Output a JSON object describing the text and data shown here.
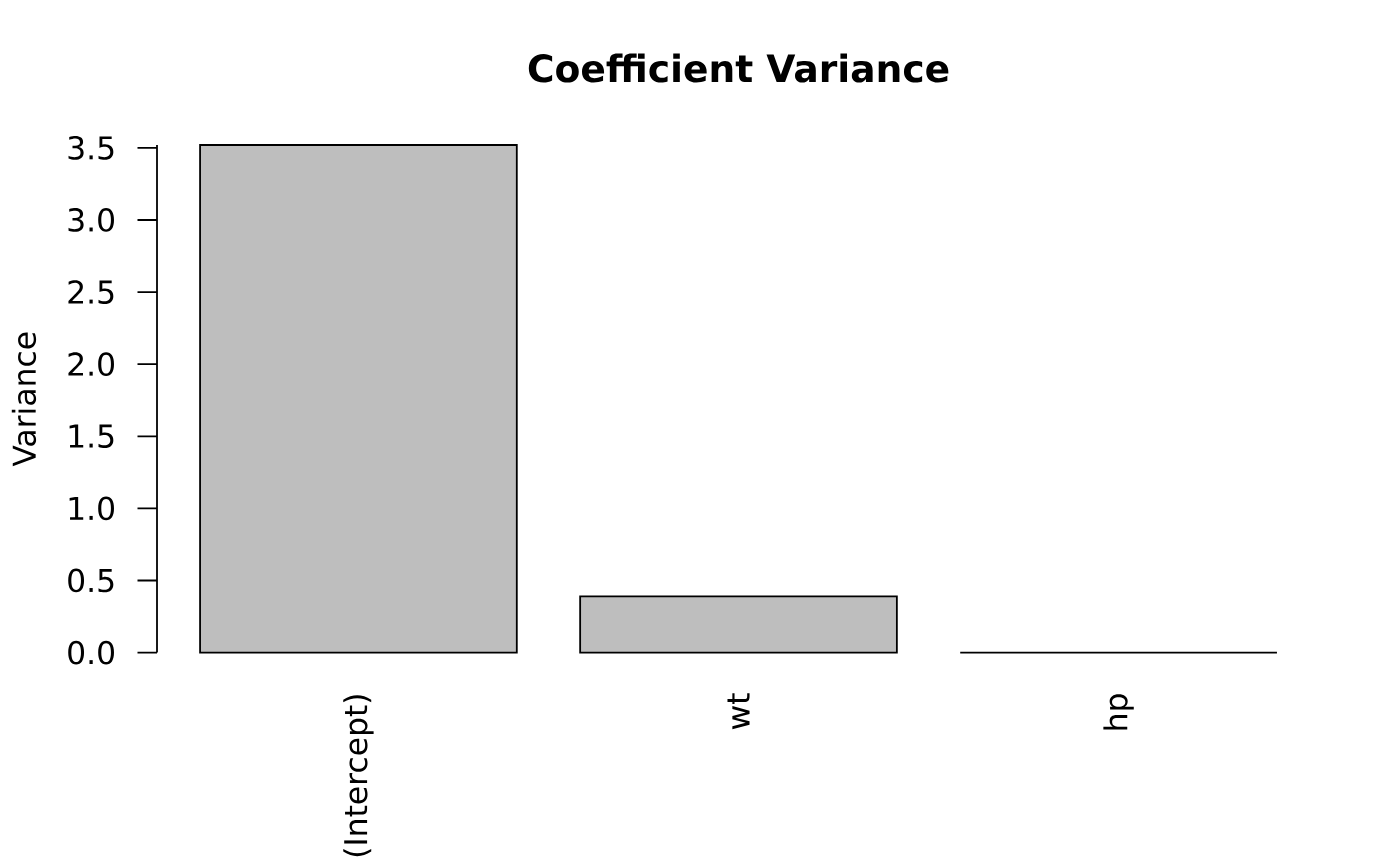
{
  "chart_data": {
    "type": "bar",
    "title": "Coefficient Variance",
    "ylabel": "Variance",
    "categories": [
      "(Intercept)",
      "wt",
      "hp"
    ],
    "values": [
      3.52,
      0.39,
      0
    ],
    "colors": [
      "#bebebe",
      "#bebebe",
      "#000000"
    ],
    "ylim": [
      0,
      3.52
    ],
    "yticks": [
      {
        "value": 0,
        "label": "0.0"
      },
      0.5,
      {
        "value": 1,
        "label": "1.0"
      },
      1.5,
      {
        "value": 2,
        "label": "2.0"
      },
      2.5,
      {
        "value": 3,
        "label": "3.0"
      },
      3.5
    ]
  }
}
